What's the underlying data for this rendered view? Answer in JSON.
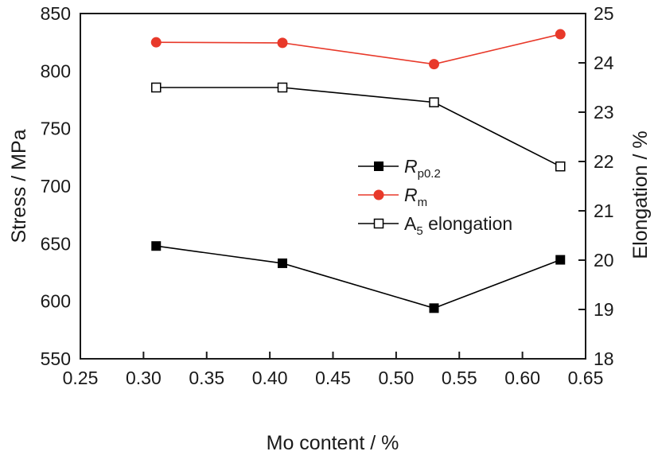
{
  "chart_data": {
    "type": "line",
    "title": "",
    "xlabel": "Mo content / %",
    "ylabel": "Stress / MPa",
    "y2label": "Elongation / %",
    "xlim": [
      0.25,
      0.65
    ],
    "ylim": [
      550,
      850
    ],
    "y2lim": [
      18,
      25
    ],
    "xticks": [
      "0.25",
      "0.30",
      "0.35",
      "0.40",
      "0.45",
      "0.50",
      "0.55",
      "0.60",
      "0.65"
    ],
    "yticks": [
      "550",
      "600",
      "650",
      "700",
      "750",
      "800",
      "850"
    ],
    "y2ticks": [
      "18",
      "19",
      "20",
      "21",
      "22",
      "23",
      "24",
      "25"
    ],
    "grid": false,
    "legend_position": "center-right",
    "x": [
      0.31,
      0.41,
      0.53,
      0.63
    ],
    "series": [
      {
        "name": "Rp0.2",
        "label_main": "R",
        "label_sub": "p0.2",
        "axis": "left",
        "marker": "filled-square",
        "color": "#000000",
        "values": [
          648,
          633,
          594,
          636
        ]
      },
      {
        "name": "Rm",
        "label_main": "R",
        "label_sub": "m",
        "axis": "left",
        "marker": "filled-circle",
        "color": "#e8392a",
        "values": [
          825,
          824.5,
          806,
          832
        ]
      },
      {
        "name": "A5 elongation",
        "label_main": "A",
        "label_sub": "5",
        "label_rest": " elongation",
        "axis": "right",
        "marker": "open-square",
        "color": "#000000",
        "values": [
          23.5,
          23.5,
          23.2,
          21.9
        ]
      }
    ]
  }
}
